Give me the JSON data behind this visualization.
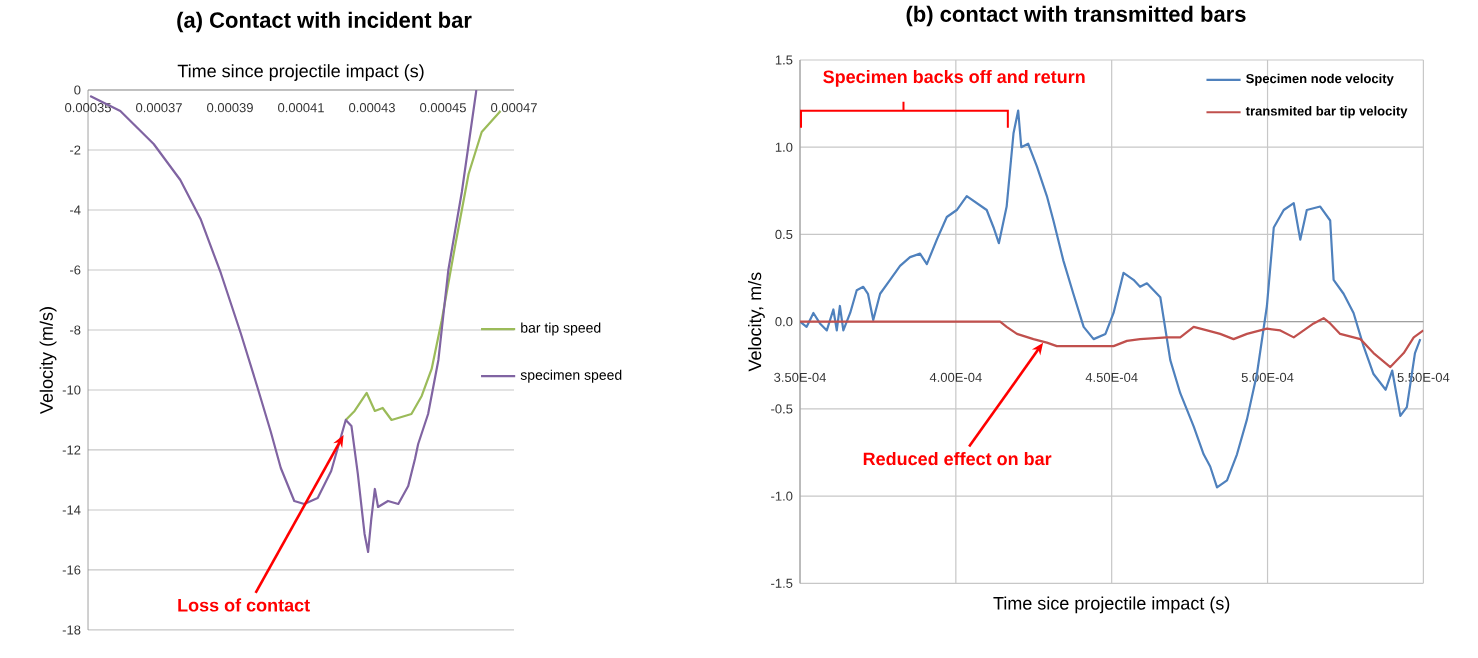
{
  "chart_data": [
    {
      "type": "line",
      "title": "(a) Contact with incident bar",
      "xlabel": "Time since projectile impact (s)",
      "ylabel": "Velocity (m/s)",
      "xlim": [
        0.00035,
        0.00047
      ],
      "xticks": [
        0.00035,
        0.00037,
        0.00039,
        0.00041,
        0.00043,
        0.00045,
        0.00047
      ],
      "ylim": [
        -18,
        0
      ],
      "yticks": [
        -18,
        -16,
        -14,
        -12,
        -10,
        -8,
        -6,
        -4,
        -2,
        0
      ],
      "grid": "y",
      "legend": "right",
      "series": [
        {
          "name": "bar tip speed",
          "color": "#9bbb59",
          "x": [
            0.0004226,
            0.0004251,
            0.0004285,
            0.0004308,
            0.000433,
            0.0004355,
            0.0004383,
            0.0004411,
            0.000444,
            0.0004468,
            0.0004496,
            0.0004534,
            0.0004572,
            0.0004609,
            0.0004662
          ],
          "values": [
            -11.0,
            -10.7,
            -10.1,
            -10.7,
            -10.6,
            -11.0,
            -10.9,
            -10.8,
            -10.2,
            -9.3,
            -7.7,
            -5.2,
            -2.8,
            -1.4,
            -0.7
          ]
        },
        {
          "name": "specimen speed",
          "color": "#8064a2",
          "x": [
            0.0003506,
            0.0003591,
            0.0003685,
            0.000376,
            0.0003817,
            0.0003874,
            0.000393,
            0.0003977,
            0.0004015,
            0.0004043,
            0.0004081,
            0.0004109,
            0.0004147,
            0.0004185,
            0.0004226,
            0.0004242,
            0.000426,
            0.0004279,
            0.0004289,
            0.0004298,
            0.0004308,
            0.0004317,
            0.0004345,
            0.0004374,
            0.0004402,
            0.0004421,
            0.000443,
            0.0004458,
            0.0004487,
            0.0004515,
            0.0004553,
            0.0004594
          ],
          "values": [
            -0.2,
            -0.7,
            -1.8,
            -3.0,
            -4.3,
            -6.1,
            -8.1,
            -9.9,
            -11.4,
            -12.6,
            -13.7,
            -13.8,
            -13.6,
            -12.7,
            -11.0,
            -11.2,
            -12.8,
            -14.8,
            -15.4,
            -14.3,
            -13.3,
            -13.9,
            -13.7,
            -13.8,
            -13.2,
            -12.3,
            -11.8,
            -10.8,
            -9.0,
            -6.0,
            -3.4,
            0.0
          ]
        }
      ],
      "annotations": [
        {
          "text": "Loss of contact",
          "x": 0.000422,
          "y": -11.5
        }
      ]
    },
    {
      "type": "line",
      "title": "(b) contact with transmitted bars",
      "xlabel": "Time sice projectile impact (s)",
      "ylabel": "Velocity, m/s",
      "xlim": [
        0.00035,
        0.00055
      ],
      "xticks": [
        {
          "value": 0.00035,
          "label": "3.50E-04"
        },
        {
          "value": 0.0004,
          "label": "4.00E-04"
        },
        {
          "value": 0.00045,
          "label": "4.50E-04"
        },
        {
          "value": 0.0005,
          "label": "5.00E-04"
        },
        {
          "value": 0.00055,
          "label": "5.50E-04"
        }
      ],
      "ylim": [
        -1.5,
        1.5
      ],
      "yticks": [
        -1.5,
        {
          "value": -1.0,
          "label": "-1.0"
        },
        -0.5,
        {
          "value": 0,
          "label": "0.0"
        },
        0.5,
        {
          "value": 1.0,
          "label": "1.0"
        },
        1.5
      ],
      "grid": true,
      "legend": "top right",
      "series": [
        {
          "name": "Specimen node velocity",
          "color": "#4f81bd",
          "x": [
            0.00035,
            0.0003521,
            0.0003543,
            0.0003564,
            0.0003586,
            0.0003607,
            0.0003618,
            0.0003628,
            0.0003639,
            0.0003661,
            0.0003682,
            0.0003703,
            0.0003718,
            0.0003735,
            0.0003757,
            0.0003789,
            0.0003821,
            0.0003853,
            0.0003885,
            0.0003907,
            0.0003939,
            0.0003971,
            0.0004003,
            0.0004035,
            0.0004067,
            0.0004099,
            0.0004121,
            0.0004138,
            0.0004163,
            0.0004185,
            0.00042,
            0.000421,
            0.0004232,
            0.000426,
            0.0004292,
            0.0004313,
            0.0004345,
            0.0004377,
            0.000441,
            0.0004442,
            0.000448,
            0.0004506,
            0.0004538,
            0.000457,
            0.0004591,
            0.0004613,
            0.0004656,
            0.0004688,
            0.000472,
            0.0004763,
            0.0004795,
            0.0004816,
            0.0004838,
            0.000487,
            0.0004902,
            0.0004934,
            0.0004966,
            0.0004998,
            0.000502,
            0.0005052,
            0.0005084,
            0.0005105,
            0.0005126,
            0.0005169,
            0.0005201,
            0.0005212,
            0.0005244,
            0.0005276,
            0.0005308,
            0.000534,
            0.0005379,
            0.00054,
            0.0005426,
            0.0005447,
            0.0005473,
            0.000549
          ],
          "values": [
            0.0,
            -0.03,
            0.05,
            -0.01,
            -0.05,
            0.07,
            -0.05,
            0.09,
            -0.05,
            0.05,
            0.18,
            0.2,
            0.16,
            0.01,
            0.16,
            0.24,
            0.32,
            0.37,
            0.39,
            0.33,
            0.47,
            0.6,
            0.64,
            0.72,
            0.68,
            0.64,
            0.54,
            0.45,
            0.66,
            1.08,
            1.21,
            1.0,
            1.02,
            0.89,
            0.72,
            0.58,
            0.35,
            0.16,
            -0.03,
            -0.1,
            -0.07,
            0.05,
            0.28,
            0.24,
            0.2,
            0.22,
            0.14,
            -0.22,
            -0.41,
            -0.6,
            -0.76,
            -0.83,
            -0.95,
            -0.91,
            -0.76,
            -0.56,
            -0.3,
            0.09,
            0.54,
            0.64,
            0.68,
            0.47,
            0.64,
            0.66,
            0.58,
            0.24,
            0.16,
            0.05,
            -0.14,
            -0.3,
            -0.39,
            -0.28,
            -0.54,
            -0.49,
            -0.18,
            -0.1
          ]
        },
        {
          "name": "transmited bar tip velocity",
          "color": "#c0504d",
          "x": [
            0.00035,
            0.0004142,
            0.0004163,
            0.0004196,
            0.0004249,
            0.0004292,
            0.0004324,
            0.000442,
            0.0004506,
            0.0004549,
            0.0004591,
            0.0004677,
            0.000472,
            0.0004763,
            0.0004806,
            0.0004848,
            0.0004891,
            0.0004934,
            0.0004998,
            0.0005041,
            0.0005084,
            0.0005116,
            0.0005148,
            0.000518,
            0.0005201,
            0.0005233,
            0.0005298,
            0.000534,
            0.0005394,
            0.0005437,
            0.0005469,
            0.00055
          ],
          "values": [
            0.0,
            0.0,
            -0.03,
            -0.07,
            -0.1,
            -0.12,
            -0.14,
            -0.14,
            -0.14,
            -0.11,
            -0.1,
            -0.09,
            -0.09,
            -0.03,
            -0.05,
            -0.07,
            -0.1,
            -0.07,
            -0.04,
            -0.05,
            -0.09,
            -0.05,
            -0.01,
            0.02,
            -0.01,
            -0.07,
            -0.1,
            -0.18,
            -0.26,
            -0.18,
            -0.09,
            -0.05
          ]
        }
      ],
      "annotations": [
        "Specimen backs off and return",
        {
          "text": "Reduced effect on bar",
          "x": 0.000428,
          "y": -0.12
        }
      ]
    }
  ]
}
